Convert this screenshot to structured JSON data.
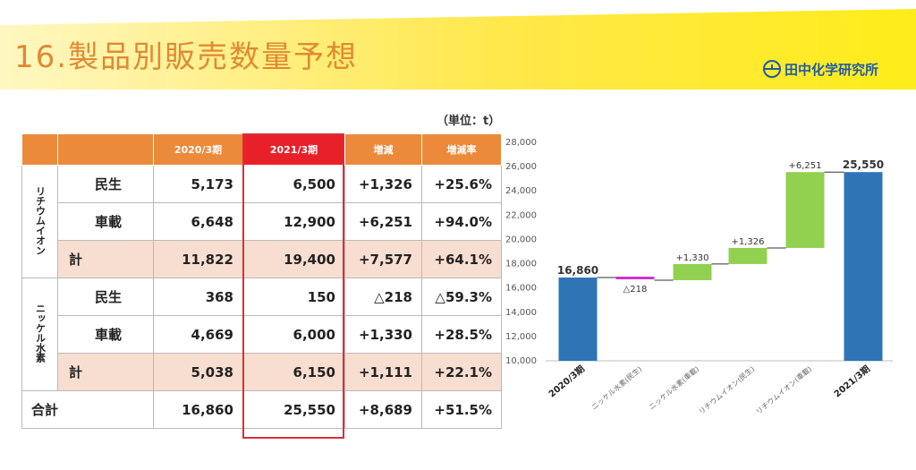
{
  "header": {
    "title": "16.製品別販売数量予想",
    "logo_text": "田中化学研究所"
  },
  "unit_label": "（単位：t）",
  "table": {
    "columns": [
      "",
      "",
      "2020/3期",
      "2021/3期",
      "増減",
      "増減率"
    ],
    "groups": [
      {
        "name": "リチウムイオン",
        "rows": [
          {
            "label": "民生",
            "values": [
              "5,173",
              "6,500",
              "+1,326",
              "+25.6%"
            ]
          },
          {
            "label": "車載",
            "values": [
              "6,648",
              "12,900",
              "+6,251",
              "+94.0%"
            ]
          },
          {
            "label": "計",
            "values": [
              "11,822",
              "19,400",
              "+7,577",
              "+64.1%"
            ]
          }
        ]
      },
      {
        "name": "ニッケル水素",
        "rows": [
          {
            "label": "民生",
            "values": [
              "368",
              "150",
              "△218",
              "△59.3%"
            ]
          },
          {
            "label": "車載",
            "values": [
              "4,669",
              "6,000",
              "+1,330",
              "+28.5%"
            ]
          },
          {
            "label": "計",
            "values": [
              "5,038",
              "6,150",
              "+1,111",
              "+22.1%"
            ]
          }
        ]
      }
    ],
    "total": {
      "label": "合計",
      "values": [
        "16,860",
        "25,550",
        "+8,689",
        "+51.5%"
      ]
    }
  },
  "chart_data": {
    "type": "waterfall",
    "categories": [
      "2020/3期",
      "ニッケル水素(民生)",
      "ニッケル水素(車載)",
      "リチウムイオン(民生)",
      "リチウムイオン(車載)",
      "2021/3期"
    ],
    "values": [
      16860,
      -218,
      1330,
      1326,
      6251,
      25550
    ],
    "labels": [
      "16,860",
      "△218",
      "+1,330",
      "+1,326",
      "+6,251",
      "25,550"
    ],
    "ylim": [
      10000,
      28000
    ],
    "yticks": [
      "10,000",
      "12,000",
      "14,000",
      "16,000",
      "18,000",
      "20,000",
      "22,000",
      "24,000",
      "26,000",
      "28,000"
    ],
    "grid": false,
    "colors": {
      "total": "#2e75b6",
      "increase": "#92d050",
      "decrease": "#cc33cc"
    }
  }
}
